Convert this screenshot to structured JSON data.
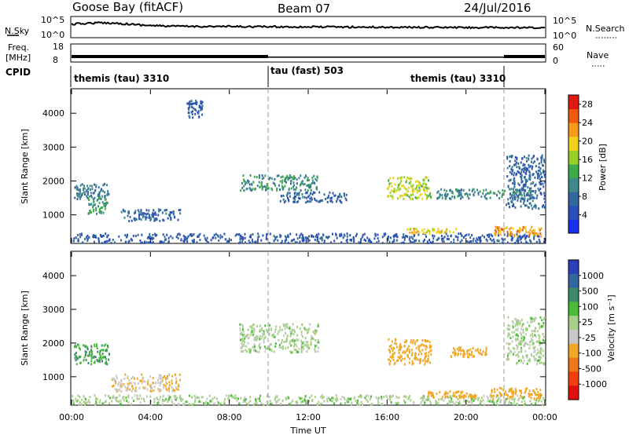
{
  "header": {
    "station": "Goose Bay (fitACF)",
    "beam": "Beam 07",
    "date": "24/Jul/2016"
  },
  "time_series_panels": {
    "nsky_label": "N.Sky",
    "nsky_ticks": [
      "10^5",
      "10^0"
    ],
    "nsearch_label": "N.Search",
    "nsearch_ticks": [
      "10^5",
      "10^0"
    ],
    "freq_label_line1": "Freq.",
    "freq_label_line2": "[MHz]",
    "freq_ticks": [
      "18",
      "8"
    ],
    "nave_label": "Nave",
    "nave_ticks": [
      "60",
      "0"
    ],
    "cpid_label": "CPID"
  },
  "cpid_segments": [
    {
      "label": "themis (tau) 3310",
      "start": "00:00",
      "end": "10:00"
    },
    {
      "label": "tau (fast) 503",
      "start": "10:00",
      "end": "22:00"
    },
    {
      "label": "themis (tau) 3310",
      "start": "22:00",
      "end": "24:00"
    }
  ],
  "colors": {
    "power_scale": [
      "#1a2ef0",
      "#2a4fb8",
      "#34679e",
      "#3e8a8a",
      "#3faa4a",
      "#98cf2a",
      "#f0d21a",
      "#f59a1a",
      "#f05a10",
      "#e01a10"
    ],
    "velocity_scale": [
      "#2a3fb8",
      "#34679e",
      "#3e8a6a",
      "#4cbb3a",
      "#a8d08a",
      "#c8c8c8",
      "#f0a828",
      "#f07818",
      "#f04010",
      "#e01010"
    ],
    "nsky_trace": "#000000"
  },
  "chart_data": [
    {
      "type": "heatmap",
      "name": "power",
      "xlabel": "",
      "ylabel": "Slant Range [km]",
      "x_ticks": [
        "00:00",
        "04:00",
        "08:00",
        "12:00",
        "16:00",
        "20:00",
        "00:00"
      ],
      "y_ticks": [
        1000,
        2000,
        3000,
        4000
      ],
      "xlim_hours": [
        0,
        24
      ],
      "ylim": [
        180,
        4700
      ],
      "colorbar_label": "Power [dB]",
      "colorbar_ticks": [
        4,
        8,
        12,
        16,
        20,
        24,
        28
      ],
      "colorbar_range": [
        0,
        30
      ],
      "scatter_regions": [
        {
          "t0": 0.0,
          "t1": 24.0,
          "r0": 200,
          "r1": 480,
          "value": 6
        },
        {
          "t0": 0.1,
          "t1": 1.9,
          "r0": 1500,
          "r1": 1950,
          "value": 9
        },
        {
          "t0": 0.8,
          "t1": 1.8,
          "r0": 1050,
          "r1": 1550,
          "value": 12
        },
        {
          "t0": 2.5,
          "t1": 5.5,
          "r0": 850,
          "r1": 1200,
          "value": 7
        },
        {
          "t0": 8.5,
          "t1": 12.5,
          "r0": 1750,
          "r1": 2200,
          "value": 11
        },
        {
          "t0": 10.5,
          "t1": 14.0,
          "r0": 1400,
          "r1": 1700,
          "value": 7
        },
        {
          "t0": 16.0,
          "t1": 18.2,
          "r0": 1500,
          "r1": 2150,
          "value": 17
        },
        {
          "t0": 17.0,
          "t1": 19.5,
          "r0": 480,
          "r1": 620,
          "value": 20
        },
        {
          "t0": 18.5,
          "t1": 23.5,
          "r0": 1500,
          "r1": 1800,
          "value": 10
        },
        {
          "t0": 21.3,
          "t1": 23.8,
          "r0": 400,
          "r1": 680,
          "value": 22
        },
        {
          "t0": 22.0,
          "t1": 24.0,
          "r0": 1200,
          "r1": 2800,
          "value": 7
        },
        {
          "t0": 5.8,
          "t1": 6.6,
          "r0": 3900,
          "r1": 4400,
          "value": 6
        }
      ]
    },
    {
      "type": "heatmap",
      "name": "velocity",
      "xlabel": "Time UT",
      "ylabel": "Slant Range [km]",
      "x_ticks": [
        "00:00",
        "04:00",
        "08:00",
        "12:00",
        "16:00",
        "20:00",
        "00:00"
      ],
      "y_ticks": [
        1000,
        2000,
        3000,
        4000
      ],
      "xlim_hours": [
        0,
        24
      ],
      "ylim": [
        180,
        4700
      ],
      "colorbar_label": "Velocity [m s⁻¹]",
      "colorbar_ticks": [
        1000,
        500,
        100,
        25,
        -25,
        -100,
        -500,
        -1000
      ],
      "scatter_regions": [
        {
          "t0": 0.0,
          "t1": 24.0,
          "r0": 200,
          "r1": 480,
          "value": 0
        },
        {
          "t0": 0.1,
          "t1": 1.9,
          "r0": 1400,
          "r1": 2000,
          "value": 100
        },
        {
          "t0": 2.0,
          "t1": 5.5,
          "r0": 600,
          "r1": 1100,
          "value": -100
        },
        {
          "t0": 8.5,
          "t1": 12.5,
          "r0": 1750,
          "r1": 2600,
          "value": 0
        },
        {
          "t0": 16.0,
          "t1": 18.2,
          "r0": 1400,
          "r1": 2150,
          "value": -200
        },
        {
          "t0": 18.0,
          "t1": 20.5,
          "r0": 400,
          "r1": 600,
          "value": -300
        },
        {
          "t0": 19.2,
          "t1": 21.0,
          "r0": 1600,
          "r1": 1900,
          "value": -300
        },
        {
          "t0": 21.2,
          "t1": 23.8,
          "r0": 380,
          "r1": 700,
          "value": -200
        },
        {
          "t0": 22.0,
          "t1": 24.0,
          "r0": 1400,
          "r1": 2800,
          "value": 0
        }
      ]
    }
  ]
}
